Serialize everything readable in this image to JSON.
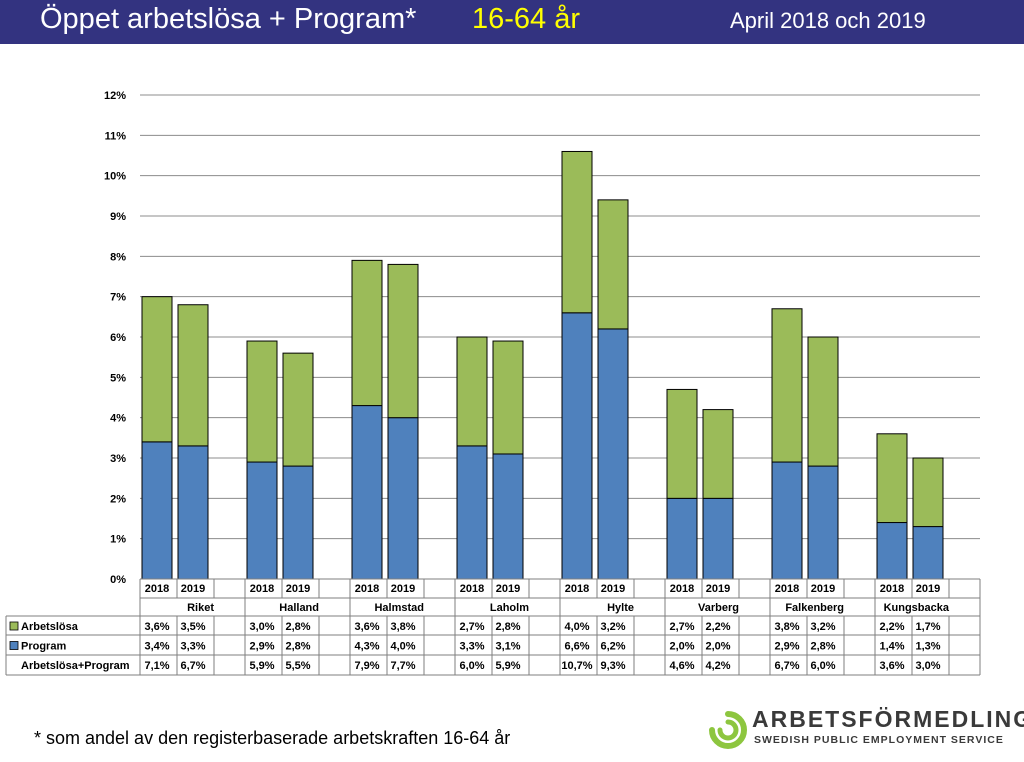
{
  "header": {
    "title": "Öppet arbetslösa + Program*",
    "age_range": "16-64 år",
    "period": "April 2018 och 2019"
  },
  "footnote": "* som andel av den registerbaserade arbetskraften 16-64 år",
  "logo": {
    "name": "ARBETSFÖRMEDLINGEN",
    "subtitle": "SWEDISH PUBLIC EMPLOYMENT SERVICE"
  },
  "colors": {
    "header_bg": "#333380",
    "title_accent": "#ffff00",
    "arbetslosa": "#9bbb59",
    "program": "#4f81bd",
    "logo_green": "#8dc63f"
  },
  "chart_data": {
    "type": "bar",
    "stacked": true,
    "ylim": [
      0,
      12
    ],
    "yticks": [
      "0%",
      "1%",
      "2%",
      "3%",
      "4%",
      "5%",
      "6%",
      "7%",
      "8%",
      "9%",
      "10%",
      "11%",
      "12%"
    ],
    "grid": true,
    "groups": [
      "Riket",
      "Halland",
      "Halmstad",
      "Laholm",
      "Hylte",
      "Varberg",
      "Falkenberg",
      "Kungsbacka"
    ],
    "years": [
      "2018",
      "2019"
    ],
    "series": [
      {
        "name": "Program",
        "color": "#4f81bd",
        "values": [
          3.4,
          3.3,
          2.9,
          2.8,
          4.3,
          4.0,
          3.3,
          3.1,
          6.6,
          6.2,
          2.0,
          2.0,
          2.9,
          2.8,
          1.4,
          1.3
        ]
      },
      {
        "name": "Arbetslösa",
        "color": "#9bbb59",
        "values": [
          3.6,
          3.5,
          3.0,
          2.8,
          3.6,
          3.8,
          2.7,
          2.8,
          4.0,
          3.2,
          2.7,
          2.2,
          3.8,
          3.2,
          2.2,
          1.7
        ]
      }
    ],
    "table": {
      "rows": [
        {
          "label": "Arbetslösa",
          "swatch": "#9bbb59",
          "cells": [
            "3,6%",
            "3,5%",
            "3,0%",
            "2,8%",
            "3,6%",
            "3,8%",
            "2,7%",
            "2,8%",
            "4,0%",
            "3,2%",
            "2,7%",
            "2,2%",
            "3,8%",
            "3,2%",
            "2,2%",
            "1,7%"
          ]
        },
        {
          "label": "Program",
          "swatch": "#4f81bd",
          "cells": [
            "3,4%",
            "3,3%",
            "2,9%",
            "2,8%",
            "4,3%",
            "4,0%",
            "3,3%",
            "3,1%",
            "6,6%",
            "6,2%",
            "2,0%",
            "2,0%",
            "2,9%",
            "2,8%",
            "1,4%",
            "1,3%"
          ]
        },
        {
          "label": "Arbetslösa+Program",
          "swatch": "",
          "cells": [
            "7,1%",
            "6,7%",
            "5,9%",
            "5,5%",
            "7,9%",
            "7,7%",
            "6,0%",
            "5,9%",
            "10,7%",
            "9,3%",
            "4,6%",
            "4,2%",
            "6,7%",
            "6,0%",
            "3,6%",
            "3,0%"
          ]
        }
      ]
    }
  }
}
